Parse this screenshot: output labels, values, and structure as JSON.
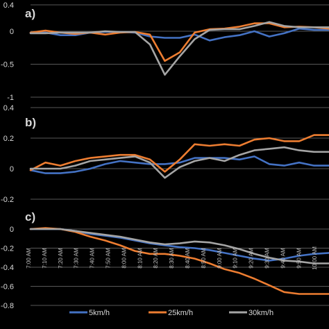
{
  "chart_data": [
    {
      "type": "line",
      "panel_label": "a)",
      "x": [
        "7:00 AM",
        "7:10 AM",
        "7:20 AM",
        "7:30 AM",
        "7:40 AM",
        "7:50 AM",
        "8:00 AM",
        "8:10 AM",
        "8:20 AM",
        "8:30 AM",
        "8:40 AM",
        "8:50 AM",
        "9:00 AM",
        "9:10 AM",
        "9:20 AM",
        "9:30 AM",
        "9:40 AM",
        "9:50 AM",
        "10:00 AM"
      ],
      "ylim": [
        -1,
        0.4
      ],
      "yticks": [
        {
          "v": 0.4,
          "t": "0.4"
        },
        {
          "v": 0,
          "t": "0"
        },
        {
          "v": -0.5,
          "t": "-0.5"
        },
        {
          "v": -1,
          "t": "-1"
        }
      ],
      "grid": true,
      "series": [
        {
          "name": "5km/h",
          "color": "#4472c4",
          "values": [
            [
              0,
              -0.02
            ],
            [
              1,
              -0.02
            ],
            [
              2,
              -0.06
            ],
            [
              3,
              -0.06
            ],
            [
              4,
              -0.02
            ],
            [
              5,
              -0.01
            ],
            [
              6,
              -0.01
            ],
            [
              7,
              -0.02
            ],
            [
              8,
              -0.08
            ],
            [
              9,
              -0.1
            ],
            [
              10,
              -0.1
            ],
            [
              11,
              -0.05
            ],
            [
              12,
              -0.14
            ],
            [
              13,
              -0.09
            ],
            [
              14,
              -0.06
            ],
            [
              15,
              0
            ],
            [
              16,
              -0.08
            ],
            [
              17,
              -0.03
            ],
            [
              18,
              0.04
            ],
            [
              19,
              0.02
            ],
            [
              20,
              0.02
            ]
          ]
        },
        {
          "name": "25km/h",
          "color": "#ed7d31",
          "values": [
            [
              0,
              -0.02
            ],
            [
              1,
              0.01
            ],
            [
              2,
              -0.02
            ],
            [
              3,
              -0.04
            ],
            [
              4,
              -0.02
            ],
            [
              5,
              -0.05
            ],
            [
              6,
              -0.02
            ],
            [
              7,
              -0.01
            ],
            [
              8,
              -0.05
            ],
            [
              9,
              -0.45
            ],
            [
              10,
              -0.32
            ],
            [
              11,
              -0.02
            ],
            [
              12,
              0.03
            ],
            [
              13,
              0.04
            ],
            [
              14,
              0.07
            ],
            [
              15,
              0.12
            ],
            [
              16,
              0.12
            ],
            [
              17,
              0.06
            ],
            [
              18,
              0.07
            ],
            [
              19,
              0.06
            ],
            [
              20,
              0.04
            ]
          ]
        },
        {
          "name": "30km/h",
          "color": "#a5a5a5",
          "values": [
            [
              0,
              -0.03
            ],
            [
              1,
              -0.03
            ],
            [
              2,
              -0.02
            ],
            [
              3,
              -0.02
            ],
            [
              4,
              -0.02
            ],
            [
              5,
              0
            ],
            [
              6,
              -0.01
            ],
            [
              7,
              -0.01
            ],
            [
              8,
              -0.2
            ],
            [
              9,
              -0.66
            ],
            [
              10,
              -0.38
            ],
            [
              11,
              -0.12
            ],
            [
              12,
              0.02
            ],
            [
              13,
              0.03
            ],
            [
              14,
              0.03
            ],
            [
              15,
              0.08
            ],
            [
              16,
              0.14
            ],
            [
              17,
              0.08
            ],
            [
              18,
              0.06
            ],
            [
              19,
              0.06
            ],
            [
              20,
              0.06
            ]
          ]
        }
      ]
    },
    {
      "type": "line",
      "panel_label": "b)",
      "x": [
        "7:00 AM",
        "7:10 AM",
        "7:20 AM",
        "7:30 AM",
        "7:40 AM",
        "7:50 AM",
        "8:00 AM",
        "8:10 AM",
        "8:20 AM",
        "8:30 AM",
        "8:40 AM",
        "8:50 AM",
        "9:00 AM",
        "9:10 AM",
        "9:20 AM",
        "9:30 AM",
        "9:40 AM",
        "9:50 AM",
        "10:00 AM"
      ],
      "ylim": [
        -0.2,
        0.4
      ],
      "yticks": [
        {
          "v": 0.4,
          "t": "0.4"
        },
        {
          "v": 0.2,
          "t": "0.2"
        },
        {
          "v": 0,
          "t": "0"
        },
        {
          "v": -0.2,
          "t": "-0.2"
        }
      ],
      "grid": true,
      "series": [
        {
          "name": "5km/h",
          "color": "#4472c4",
          "values": [
            [
              0,
              -0.01
            ],
            [
              1,
              -0.03
            ],
            [
              2,
              -0.03
            ],
            [
              3,
              -0.02
            ],
            [
              4,
              0
            ],
            [
              5,
              0.03
            ],
            [
              6,
              0.05
            ],
            [
              7,
              0.04
            ],
            [
              8,
              0.03
            ],
            [
              9,
              0.03
            ],
            [
              10,
              0.04
            ],
            [
              11,
              0.07
            ],
            [
              12,
              0.07
            ],
            [
              13,
              0.07
            ],
            [
              14,
              0.06
            ],
            [
              15,
              0.08
            ],
            [
              16,
              0.03
            ],
            [
              17,
              0.02
            ],
            [
              18,
              0.04
            ],
            [
              19,
              0.02
            ],
            [
              20,
              0.02
            ]
          ]
        },
        {
          "name": "25km/h",
          "color": "#ed7d31",
          "values": [
            [
              0,
              -0.01
            ],
            [
              1,
              0.04
            ],
            [
              2,
              0.02
            ],
            [
              3,
              0.05
            ],
            [
              4,
              0.07
            ],
            [
              5,
              0.08
            ],
            [
              6,
              0.09
            ],
            [
              7,
              0.09
            ],
            [
              8,
              0.06
            ],
            [
              9,
              -0.02
            ],
            [
              10,
              0.06
            ],
            [
              11,
              0.16
            ],
            [
              12,
              0.15
            ],
            [
              13,
              0.16
            ],
            [
              14,
              0.15
            ],
            [
              15,
              0.19
            ],
            [
              16,
              0.2
            ],
            [
              17,
              0.18
            ],
            [
              18,
              0.18
            ],
            [
              19,
              0.22
            ],
            [
              20,
              0.22
            ]
          ]
        },
        {
          "name": "30km/h",
          "color": "#a5a5a5",
          "values": [
            [
              0,
              0
            ],
            [
              1,
              0
            ],
            [
              2,
              0
            ],
            [
              3,
              0.02
            ],
            [
              4,
              0.05
            ],
            [
              5,
              0.06
            ],
            [
              6,
              0.07
            ],
            [
              7,
              0.08
            ],
            [
              8,
              0.04
            ],
            [
              9,
              -0.06
            ],
            [
              10,
              0.01
            ],
            [
              11,
              0.05
            ],
            [
              12,
              0.07
            ],
            [
              13,
              0.05
            ],
            [
              14,
              0.09
            ],
            [
              15,
              0.12
            ],
            [
              16,
              0.13
            ],
            [
              17,
              0.14
            ],
            [
              18,
              0.12
            ],
            [
              19,
              0.11
            ],
            [
              20,
              0.11
            ]
          ]
        }
      ]
    },
    {
      "type": "line",
      "panel_label": "c)",
      "x": [
        "7:00 AM",
        "7:10 AM",
        "7:20 AM",
        "7:30 AM",
        "7:40 AM",
        "7:50 AM",
        "8:00 AM",
        "8:10 AM",
        "8:20 AM",
        "8:30 AM",
        "8:40 AM",
        "8:50 AM",
        "9:00 AM",
        "9:10 AM",
        "9:20 AM",
        "9:30 AM",
        "9:40 AM",
        "9:50 AM",
        "10:00 AM"
      ],
      "ylim": [
        -0.8,
        0
      ],
      "yticks": [
        {
          "v": 0,
          "t": "0"
        },
        {
          "v": -0.2,
          "t": "-0.2"
        },
        {
          "v": -0.4,
          "t": "-0.4"
        },
        {
          "v": -0.6,
          "t": "-0.6"
        },
        {
          "v": -0.8,
          "t": "-0.8"
        }
      ],
      "grid": true,
      "series": [
        {
          "name": "5km/h",
          "color": "#4472c4",
          "values": [
            [
              0,
              0
            ],
            [
              1,
              0
            ],
            [
              2,
              0
            ],
            [
              3,
              -0.02
            ],
            [
              4,
              -0.05
            ],
            [
              5,
              -0.07
            ],
            [
              6,
              -0.09
            ],
            [
              7,
              -0.12
            ],
            [
              8,
              -0.15
            ],
            [
              9,
              -0.17
            ],
            [
              10,
              -0.19
            ],
            [
              11,
              -0.2
            ],
            [
              12,
              -0.22
            ],
            [
              13,
              -0.25
            ],
            [
              14,
              -0.28
            ],
            [
              15,
              -0.31
            ],
            [
              16,
              -0.33
            ],
            [
              17,
              -0.31
            ],
            [
              18,
              -0.28
            ],
            [
              19,
              -0.26
            ],
            [
              20,
              -0.25
            ]
          ]
        },
        {
          "name": "25km/h",
          "color": "#ed7d31",
          "values": [
            [
              0,
              0
            ],
            [
              1,
              0.01
            ],
            [
              2,
              0
            ],
            [
              3,
              -0.03
            ],
            [
              4,
              -0.08
            ],
            [
              5,
              -0.12
            ],
            [
              6,
              -0.17
            ],
            [
              7,
              -0.23
            ],
            [
              8,
              -0.26
            ],
            [
              9,
              -0.26
            ],
            [
              10,
              -0.28
            ],
            [
              11,
              -0.31
            ],
            [
              12,
              -0.36
            ],
            [
              13,
              -0.42
            ],
            [
              14,
              -0.46
            ],
            [
              15,
              -0.52
            ],
            [
              16,
              -0.59
            ],
            [
              17,
              -0.66
            ],
            [
              18,
              -0.68
            ],
            [
              19,
              -0.68
            ],
            [
              20,
              -0.68
            ]
          ]
        },
        {
          "name": "30km/h",
          "color": "#a5a5a5",
          "values": [
            [
              0,
              0
            ],
            [
              1,
              0
            ],
            [
              2,
              0
            ],
            [
              3,
              -0.02
            ],
            [
              4,
              -0.04
            ],
            [
              5,
              -0.06
            ],
            [
              6,
              -0.08
            ],
            [
              7,
              -0.11
            ],
            [
              8,
              -0.14
            ],
            [
              9,
              -0.16
            ],
            [
              10,
              -0.15
            ],
            [
              11,
              -0.13
            ],
            [
              12,
              -0.14
            ],
            [
              13,
              -0.17
            ],
            [
              14,
              -0.21
            ],
            [
              15,
              -0.26
            ],
            [
              16,
              -0.3
            ],
            [
              17,
              -0.33
            ],
            [
              18,
              -0.34
            ],
            [
              19,
              -0.36
            ],
            [
              20,
              -0.36
            ]
          ]
        }
      ]
    }
  ],
  "x_point_count": 21,
  "legend": [
    {
      "name": "5km/h",
      "color": "#4472c4"
    },
    {
      "name": "25km/h",
      "color": "#ed7d31"
    },
    {
      "name": "30km/h",
      "color": "#a5a5a5"
    }
  ],
  "colors": {
    "background": "#000000",
    "grid": "#595959",
    "text": "#d9d9d9"
  }
}
